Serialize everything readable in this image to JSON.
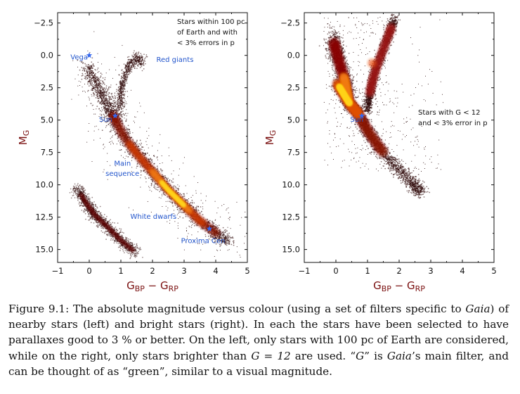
{
  "chart_data": [
    {
      "type": "scatter",
      "panel": "left",
      "xlabel_main": "G",
      "xlabel_sub1": "BP",
      "xlabel_minus": " − ",
      "xlabel_main2": "G",
      "xlabel_sub2": "RP",
      "ylabel_main": "M",
      "ylabel_sub": "G",
      "xlim": [
        -1,
        5
      ],
      "ylim": [
        16,
        -3.3
      ],
      "xticks": [
        -1,
        0,
        1,
        2,
        3,
        4,
        5
      ],
      "yticks": [
        -2.5,
        0.0,
        2.5,
        5.0,
        7.5,
        10.0,
        12.5,
        15.0
      ],
      "xtick_labels": [
        "−1",
        "0",
        "1",
        "2",
        "3",
        "4",
        "5"
      ],
      "ytick_labels": [
        "−2.5",
        "0.0",
        "2.5",
        "5.0",
        "7.5",
        "10.0",
        "12.5",
        "15.0"
      ],
      "selection_note": [
        "Stars within 100 pc",
        "of Earth and with",
        "< 3% errors in p"
      ],
      "labels": [
        {
          "text": "Vega",
          "x": 0.0,
          "y": 0.1
        },
        {
          "text": "Red giants",
          "x": 2.3,
          "y": 0.3
        },
        {
          "text": "Sun",
          "x": 0.8,
          "y": 4.9
        },
        {
          "text": "Main",
          "x": 1.05,
          "y": 8.3
        },
        {
          "text": "sequence",
          "x": 1.05,
          "y": 9.1
        },
        {
          "text": "White dwarfs",
          "x": 1.3,
          "y": 12.4
        },
        {
          "text": "Proxima Cen",
          "x": 3.6,
          "y": 14.3
        }
      ],
      "stars": [
        {
          "name": "Vega",
          "x": 0.0,
          "y": 0.0
        },
        {
          "name": "Sun",
          "x": 0.82,
          "y": 4.67
        },
        {
          "name": "Proxima Cen",
          "x": 3.8,
          "y": 13.4
        }
      ],
      "density": {
        "main_sequence": [
          [
            -0.1,
            0.8
          ],
          [
            0.2,
            2.1
          ],
          [
            0.45,
            3.3
          ],
          [
            0.7,
            4.4
          ],
          [
            0.85,
            5.1
          ],
          [
            1.1,
            6.3
          ],
          [
            1.5,
            7.6
          ],
          [
            2.0,
            9.0
          ],
          [
            2.5,
            10.4
          ],
          [
            3.0,
            11.6
          ],
          [
            3.5,
            12.8
          ],
          [
            4.0,
            13.7
          ],
          [
            4.4,
            14.4
          ]
        ],
        "white_dwarfs": [
          [
            -0.4,
            10.2
          ],
          [
            -0.1,
            11.4
          ],
          [
            0.2,
            12.4
          ],
          [
            0.6,
            13.3
          ],
          [
            1.0,
            14.3
          ],
          [
            1.5,
            15.3
          ]
        ],
        "giant_branch": [
          [
            0.95,
            4.3
          ],
          [
            1.0,
            3.2
          ],
          [
            1.05,
            2.4
          ],
          [
            1.15,
            1.4
          ],
          [
            1.3,
            0.6
          ],
          [
            1.55,
            0.2
          ],
          [
            1.7,
            0.6
          ]
        ],
        "peak": [
          2.6,
          10.5
        ]
      },
      "colors": {
        "axis": "#111111",
        "label": "#2255cc",
        "axis_label": "#7a1010",
        "star": "#3366ee"
      }
    },
    {
      "type": "scatter",
      "panel": "right",
      "xlabel_main": "G",
      "xlabel_sub1": "BP",
      "xlabel_minus": " − ",
      "xlabel_main2": "G",
      "xlabel_sub2": "RP",
      "ylabel_main": "M",
      "ylabel_sub": "G",
      "xlim": [
        -1,
        5
      ],
      "ylim": [
        16,
        -3.3
      ],
      "xticks": [
        -1,
        0,
        1,
        2,
        3,
        4,
        5
      ],
      "yticks": [
        -2.5,
        0.0,
        2.5,
        5.0,
        7.5,
        10.0,
        12.5,
        15.0
      ],
      "xtick_labels": [
        "−1",
        "0",
        "1",
        "2",
        "3",
        "4",
        "5"
      ],
      "ytick_labels": [
        "−2.5",
        "0.0",
        "2.5",
        "5.0",
        "7.5",
        "10.0",
        "12.5",
        "15.0"
      ],
      "selection_note": [
        "Stars with G < 12",
        "and < 3% error in p"
      ],
      "labels": [
        {
          "text": "Sun",
          "x": 0.45,
          "y": 4.9
        }
      ],
      "stars": [
        {
          "name": "Sun",
          "x": 0.82,
          "y": 4.67
        }
      ],
      "density": {
        "main_sequence": [
          [
            0.05,
            2.2
          ],
          [
            0.4,
            3.6
          ],
          [
            0.7,
            4.5
          ],
          [
            1.0,
            5.8
          ],
          [
            1.4,
            7.2
          ],
          [
            1.9,
            8.6
          ],
          [
            2.4,
            9.8
          ],
          [
            2.7,
            10.6
          ]
        ],
        "upper_ms": [
          [
            0.4,
            3.4
          ],
          [
            0.3,
            2.1
          ],
          [
            0.15,
            0.9
          ],
          [
            0.0,
            -0.4
          ],
          [
            -0.1,
            -1.4
          ]
        ],
        "giant_branch": [
          [
            1.0,
            4.2
          ],
          [
            1.05,
            3.2
          ],
          [
            1.15,
            2.0
          ],
          [
            1.3,
            0.8
          ],
          [
            1.5,
            -0.5
          ],
          [
            1.7,
            -1.8
          ],
          [
            1.85,
            -2.8
          ]
        ],
        "clump": [
          1.15,
          0.6
        ],
        "peak": [
          0.75,
          3.8
        ]
      },
      "colors": {
        "axis": "#111111",
        "label": "#2255cc",
        "axis_label": "#7a1010",
        "star": "#3366ee"
      }
    }
  ],
  "caption": {
    "prefix": "Figure 9.1:  The absolute magnitude versus colour (using a set of filters specific to ",
    "gaia1": "Gaia",
    "part2": ") of nearby stars (left) and bright stars (right).  In each the stars have been selected to have parallaxes good to ",
    "pct": "3 %",
    "part3": " or better.  On the left, only stars with ",
    "pc": "100",
    "part4": " pc of Earth are considered, while on the right, only stars brighter than ",
    "geq": "G = 12",
    "part5": " are used.  “",
    "gq": "G",
    "part6": "” is ",
    "gaia2": "Gaia",
    "part7": "’s main filter, and can be thought of as “green”, similar to a visual magnitude."
  }
}
